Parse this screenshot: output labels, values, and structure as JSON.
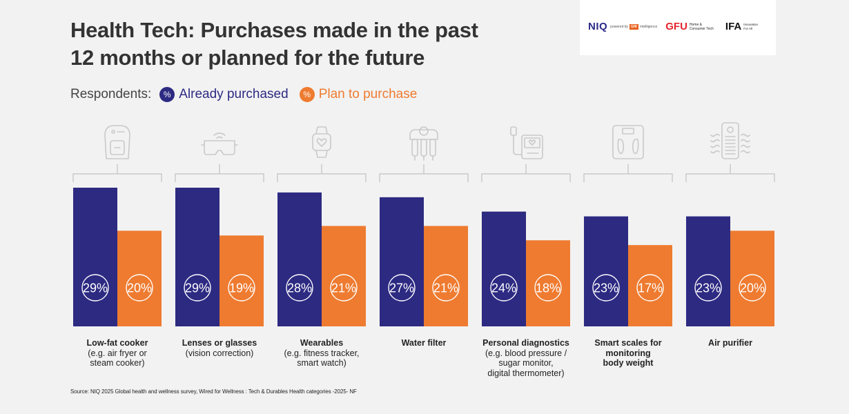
{
  "title_lines": [
    "Health Tech: Purchases made in the past",
    "12 months or planned for the future"
  ],
  "legend": {
    "label": "Respondents:",
    "badge_text": "%",
    "items": [
      {
        "label": "Already purchased",
        "color": "#2d2a82"
      },
      {
        "label": "Plan to purchase",
        "color": "#ee7b30"
      }
    ]
  },
  "logos": {
    "niq": "NIQ",
    "powered_by": "powered by",
    "gfk": "GfK",
    "intelligence": "intelligence",
    "gfu": "GFU",
    "gfu_sub": "Home & Consumer Tech",
    "ifa": "IFA",
    "ifa_sub": "Innovation For All"
  },
  "chart_data": {
    "type": "bar",
    "ylim": [
      0,
      100
    ],
    "series": [
      {
        "name": "Already purchased",
        "color": "#2d2a82",
        "values": [
          29,
          29,
          28,
          27,
          24,
          23,
          23
        ]
      },
      {
        "name": "Plan to purchase",
        "color": "#ee7b30",
        "values": [
          20,
          19,
          21,
          21,
          18,
          17,
          20
        ]
      }
    ],
    "categories": [
      {
        "name": "Low-fat cooker",
        "sub": [
          "(e.g. air fryer or",
          "steam cooker)"
        ],
        "icon": "air-fryer-icon"
      },
      {
        "name": "Lenses or glasses",
        "sub": [
          "(vision correction)"
        ],
        "icon": "vr-glasses-icon"
      },
      {
        "name": "Wearables",
        "sub": [
          "(e.g. fitness tracker,",
          "smart watch)"
        ],
        "icon": "smartwatch-icon"
      },
      {
        "name": "Water filter",
        "sub": [],
        "icon": "water-filter-icon"
      },
      {
        "name": "Personal diagnostics",
        "sub": [
          "(e.g. blood pressure /",
          "sugar monitor,",
          "digital thermometer)"
        ],
        "icon": "blood-pressure-monitor-icon"
      },
      {
        "name": "Smart scales for monitoring body weight",
        "name_lines": [
          "Smart scales for",
          "monitoring",
          "body weight"
        ],
        "sub": [],
        "icon": "smart-scale-icon"
      },
      {
        "name": "Air purifier",
        "sub": [],
        "icon": "air-purifier-icon"
      }
    ],
    "value_suffix": "%",
    "grid": false
  },
  "source": "Source: NIQ 2025 Global health and wellness survey, Wired for Wellness : Tech & Durables Health categories -2025- NF"
}
